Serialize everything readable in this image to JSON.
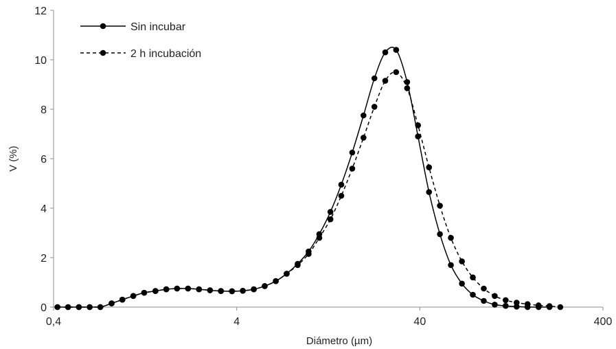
{
  "chart_data": {
    "type": "line",
    "title": "",
    "xlabel": "Diámetro (µm)",
    "ylabel": "V (%)",
    "x_scale": "log",
    "xlim": [
      0.4,
      400
    ],
    "ylim": [
      0,
      12
    ],
    "x_ticks": [
      {
        "value": 0.4,
        "label": "0,4"
      },
      {
        "value": 4,
        "label": "4"
      },
      {
        "value": 40,
        "label": "40"
      },
      {
        "value": 400,
        "label": "400"
      }
    ],
    "y_ticks": [
      0,
      2,
      4,
      6,
      8,
      10,
      12
    ],
    "grid": false,
    "legend_position": "top-left",
    "series": [
      {
        "name": "Sin incubar",
        "line_style": "solid",
        "color": "#000000",
        "x": [
          0.42,
          0.48,
          0.55,
          0.63,
          0.72,
          0.83,
          0.95,
          1.09,
          1.25,
          1.44,
          1.65,
          1.89,
          2.17,
          2.49,
          2.86,
          3.28,
          3.77,
          4.32,
          4.96,
          5.69,
          6.54,
          7.5,
          8.61,
          9.88,
          11.3,
          13.0,
          14.9,
          17.1,
          19.7,
          22.6,
          25.9,
          29.7,
          34.1,
          39.1,
          44.9,
          51.5,
          59.1,
          67.9,
          77.9,
          89.4,
          102.6,
          117.7,
          135.1,
          155.0,
          178.0,
          204.2
        ],
        "values": [
          0,
          0,
          0,
          0,
          0,
          0.15,
          0.3,
          0.45,
          0.58,
          0.65,
          0.72,
          0.75,
          0.75,
          0.72,
          0.68,
          0.65,
          0.64,
          0.66,
          0.72,
          0.85,
          1.05,
          1.35,
          1.75,
          2.25,
          2.95,
          3.85,
          4.95,
          6.25,
          7.75,
          9.25,
          10.3,
          10.4,
          9.1,
          6.9,
          4.65,
          2.95,
          1.7,
          0.95,
          0.5,
          0.25,
          0.1,
          0.05,
          0.02,
          0,
          0,
          0
        ]
      },
      {
        "name": "2 h incubación",
        "line_style": "dashed",
        "color": "#000000",
        "x": [
          0.42,
          0.48,
          0.55,
          0.63,
          0.72,
          0.83,
          0.95,
          1.09,
          1.25,
          1.44,
          1.65,
          1.89,
          2.17,
          2.49,
          2.86,
          3.28,
          3.77,
          4.32,
          4.96,
          5.69,
          6.54,
          7.5,
          8.61,
          9.88,
          11.3,
          13.0,
          14.9,
          17.1,
          19.7,
          22.6,
          25.9,
          29.7,
          34.1,
          39.1,
          44.9,
          51.5,
          59.1,
          67.9,
          77.9,
          89.4,
          102.6,
          117.7,
          135.1,
          155.0,
          178.0,
          204.2,
          234.0
        ],
        "values": [
          0,
          0,
          0,
          0,
          0,
          0.15,
          0.3,
          0.45,
          0.58,
          0.65,
          0.72,
          0.75,
          0.75,
          0.72,
          0.68,
          0.65,
          0.64,
          0.66,
          0.72,
          0.85,
          1.05,
          1.35,
          1.7,
          2.15,
          2.8,
          3.55,
          4.5,
          5.6,
          6.85,
          8.1,
          9.15,
          9.5,
          8.85,
          7.35,
          5.65,
          4.1,
          2.8,
          1.85,
          1.2,
          0.75,
          0.45,
          0.28,
          0.18,
          0.12,
          0.07,
          0.04,
          0
        ]
      }
    ]
  }
}
